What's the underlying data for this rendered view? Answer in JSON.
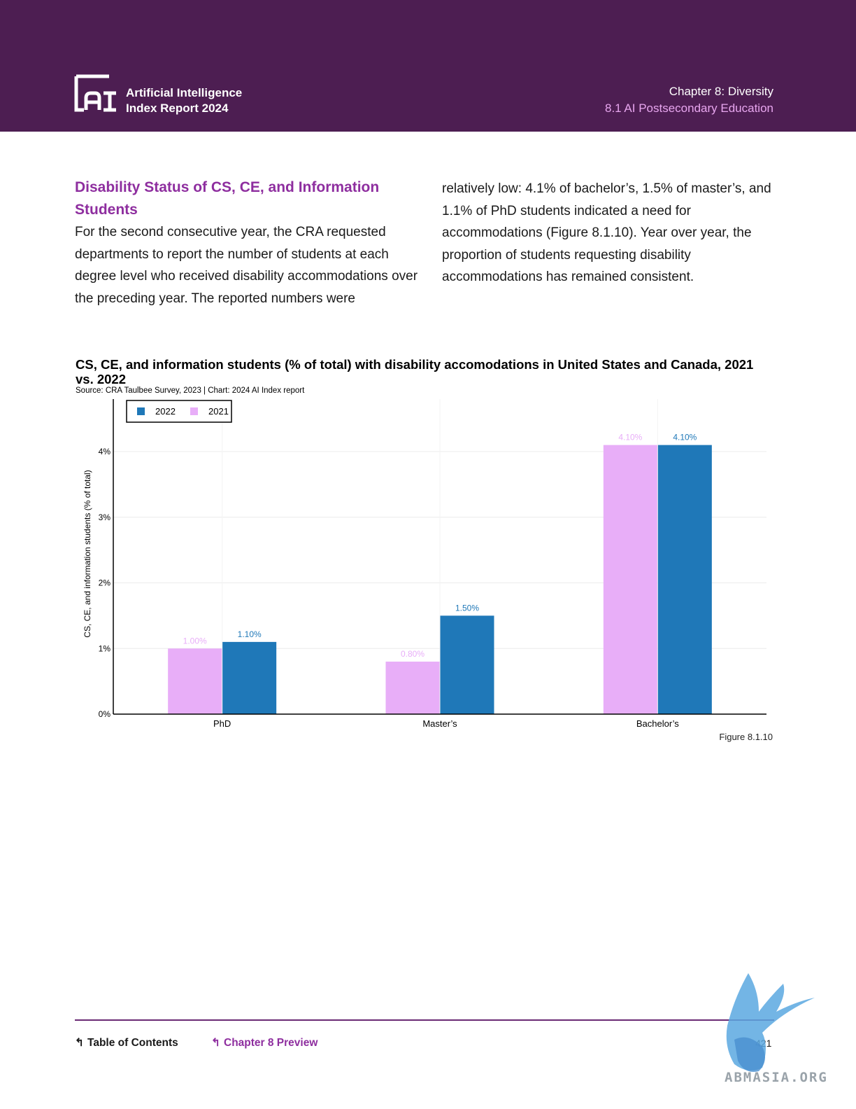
{
  "header": {
    "brand_line1": "Artificial Intelligence",
    "brand_line2": "Index Report 2024",
    "chapter": "Chapter 8: Diversity",
    "section": "8.1 AI Postsecondary Education",
    "bg_color": "#4d1e52",
    "accent_color": "#e8a6ef"
  },
  "body": {
    "section_title": "Disability Status of CS, CE, and Information Students",
    "left_paragraph": "For the second consecutive year, the CRA requested departments to report the number of students at each degree level who received disability accommodations over the preceding year. The reported numbers were",
    "right_paragraph": "relatively low: 4.1% of bachelor’s, 1.5% of master’s, and 1.1% of PhD students indicated a need for accommodations (Figure 8.1.10). Year over year, the proportion of students requesting disability accommodations has remained consistent."
  },
  "chart_data": {
    "type": "bar",
    "title": "CS, CE, and information students (% of total) with disability accomodations in United States and Canada, 2021 vs. 2022",
    "source": "Source: CRA Taulbee Survey, 2023 | Chart: 2024 AI Index report",
    "ylabel": "CS, CE, and information students (% of total)",
    "xlabel": "",
    "categories": [
      "PhD",
      "Master’s",
      "Bachelor’s"
    ],
    "series": [
      {
        "name": "2021",
        "values": [
          1.0,
          0.8,
          4.1
        ],
        "labels": [
          "1.00%",
          "0.80%",
          "4.10%"
        ],
        "color": "#e8aef8"
      },
      {
        "name": "2022",
        "values": [
          1.1,
          1.5,
          4.1
        ],
        "labels": [
          "1.10%",
          "1.50%",
          "4.10%"
        ],
        "color": "#1f78b8"
      }
    ],
    "legend_order": [
      "2022",
      "2021"
    ],
    "legend_position": "top-left",
    "ylim": [
      0,
      4.8
    ],
    "yticks": [
      0,
      1,
      2,
      3,
      4
    ],
    "ytick_labels": [
      "0%",
      "1%",
      "2%",
      "3%",
      "4%"
    ],
    "grid": true
  },
  "figure_label": "Figure 8.1.10",
  "footer": {
    "toc": "Table of Contents",
    "chapter_preview": "Chapter 8 Preview",
    "page": "421"
  },
  "watermark_text": "ABMASIA.ORG"
}
